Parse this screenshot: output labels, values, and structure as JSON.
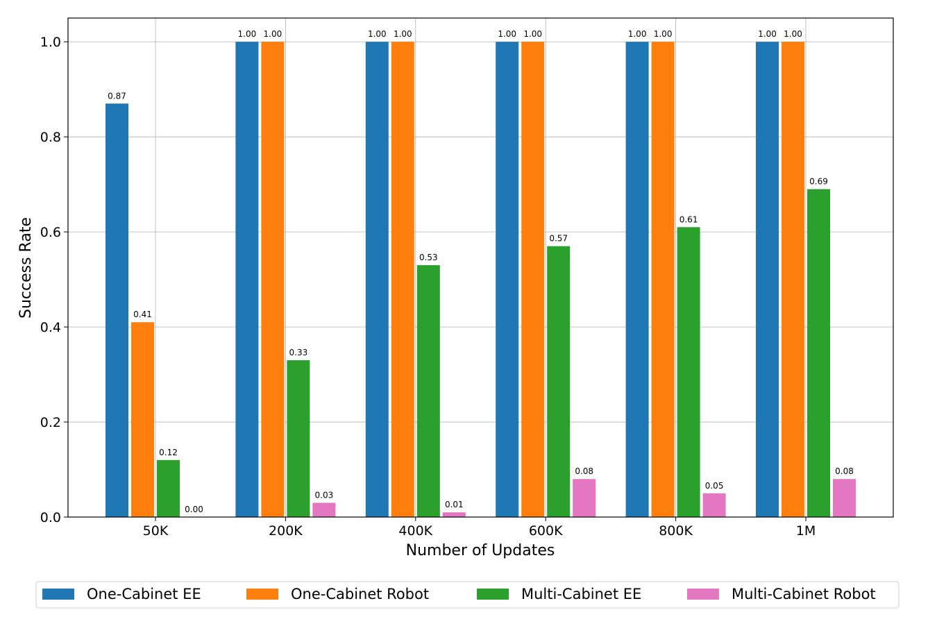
{
  "chart_data": {
    "type": "bar",
    "title": "",
    "xlabel": "Number of Updates",
    "ylabel": "Success Rate",
    "ylim": [
      0,
      1.05
    ],
    "yticks": [
      "0.0",
      "0.2",
      "0.4",
      "0.6",
      "0.8",
      "1.0"
    ],
    "categories": [
      "50K",
      "200K",
      "400K",
      "600K",
      "800K",
      "1M"
    ],
    "grid": true,
    "legend_position": "bottom",
    "series": [
      {
        "name": "One-Cabinet EE",
        "color": "#1f77b4",
        "values": [
          0.87,
          1.0,
          1.0,
          1.0,
          1.0,
          1.0
        ]
      },
      {
        "name": "One-Cabinet Robot",
        "color": "#ff7f0e",
        "values": [
          0.41,
          1.0,
          1.0,
          1.0,
          1.0,
          1.0
        ]
      },
      {
        "name": "Multi-Cabinet EE",
        "color": "#2ca02c",
        "values": [
          0.12,
          0.33,
          0.53,
          0.57,
          0.61,
          0.69
        ]
      },
      {
        "name": "Multi-Cabinet Robot",
        "color": "#e377c2",
        "values": [
          0.0,
          0.03,
          0.01,
          0.08,
          0.05,
          0.08
        ]
      }
    ]
  }
}
